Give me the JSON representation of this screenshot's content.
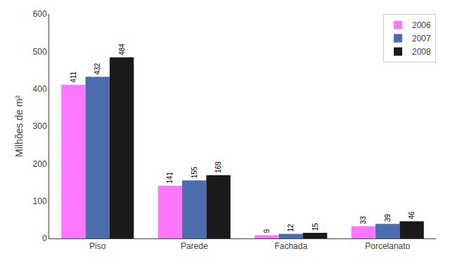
{
  "chart_data": {
    "type": "bar",
    "categories": [
      "Piso",
      "Parede",
      "Fachada",
      "Porcelanato"
    ],
    "series": [
      {
        "name": "2006",
        "color": "#FF77FF",
        "values": [
          411,
          141,
          9,
          33
        ]
      },
      {
        "name": "2007",
        "color": "#4C6DAD",
        "values": [
          432,
          155,
          12,
          39
        ]
      },
      {
        "name": "2008",
        "color": "#1A1A1A",
        "values": [
          484,
          169,
          15,
          46
        ]
      }
    ],
    "ylabel": "Milhões de m²",
    "ylim": [
      0,
      600
    ],
    "yticks": [
      0,
      100,
      200,
      300,
      400,
      500,
      600
    ],
    "legend": "upper right",
    "data_labels": true,
    "grid": false
  }
}
